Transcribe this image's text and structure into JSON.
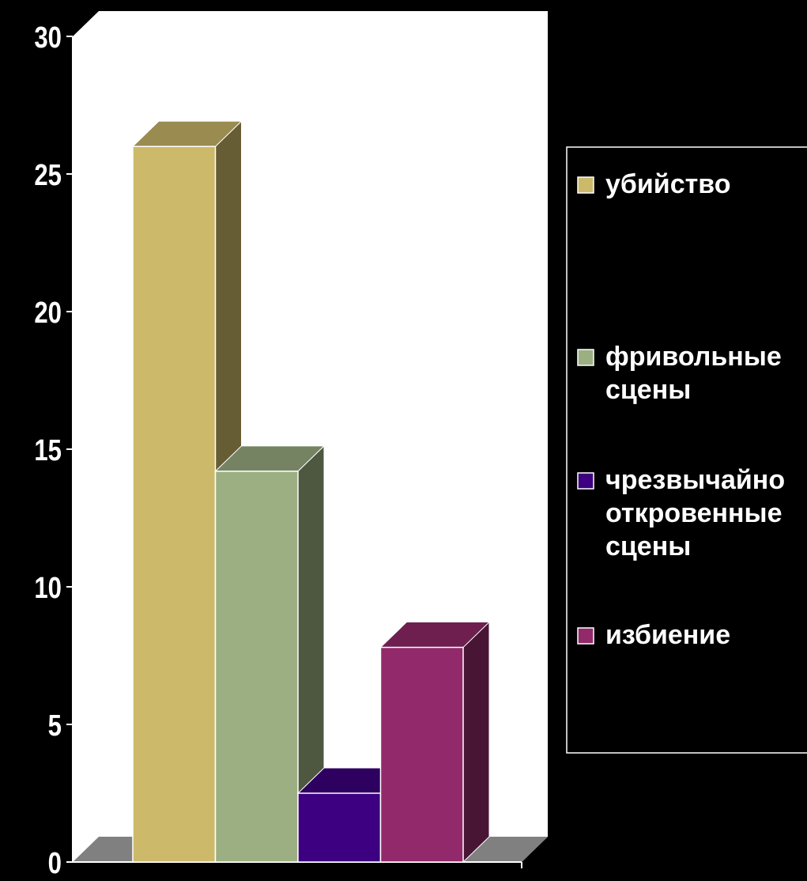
{
  "chart_data": {
    "type": "bar",
    "title": "",
    "xlabel": "",
    "ylabel": "",
    "ylim": [
      0,
      30
    ],
    "yticks": [
      0,
      5,
      10,
      15,
      20,
      25,
      30
    ],
    "three_d": true,
    "grid": false,
    "legend_position": "right",
    "series": [
      {
        "name": "убийство",
        "label_lines": [
          "убийство"
        ],
        "value": 26,
        "color": "#CDB96A"
      },
      {
        "name": "фривольные сцены",
        "label_lines": [
          "фривольные",
          "сцены"
        ],
        "value": 14.2,
        "color": "#9CAF82"
      },
      {
        "name": "чрезвычайно откровенные сцены",
        "label_lines": [
          "чрезвычайно",
          "откровенные",
          "сцены"
        ],
        "value": 2.5,
        "color": "#3D0080"
      },
      {
        "name": "избиение",
        "label_lines": [
          "избиение"
        ],
        "value": 7.8,
        "color": "#92296A"
      }
    ]
  },
  "colors": {
    "background": "#000000",
    "plot_wall": "#ffffff",
    "floor": "#808080",
    "axis": "#ffffff",
    "text": "#ffffff"
  }
}
